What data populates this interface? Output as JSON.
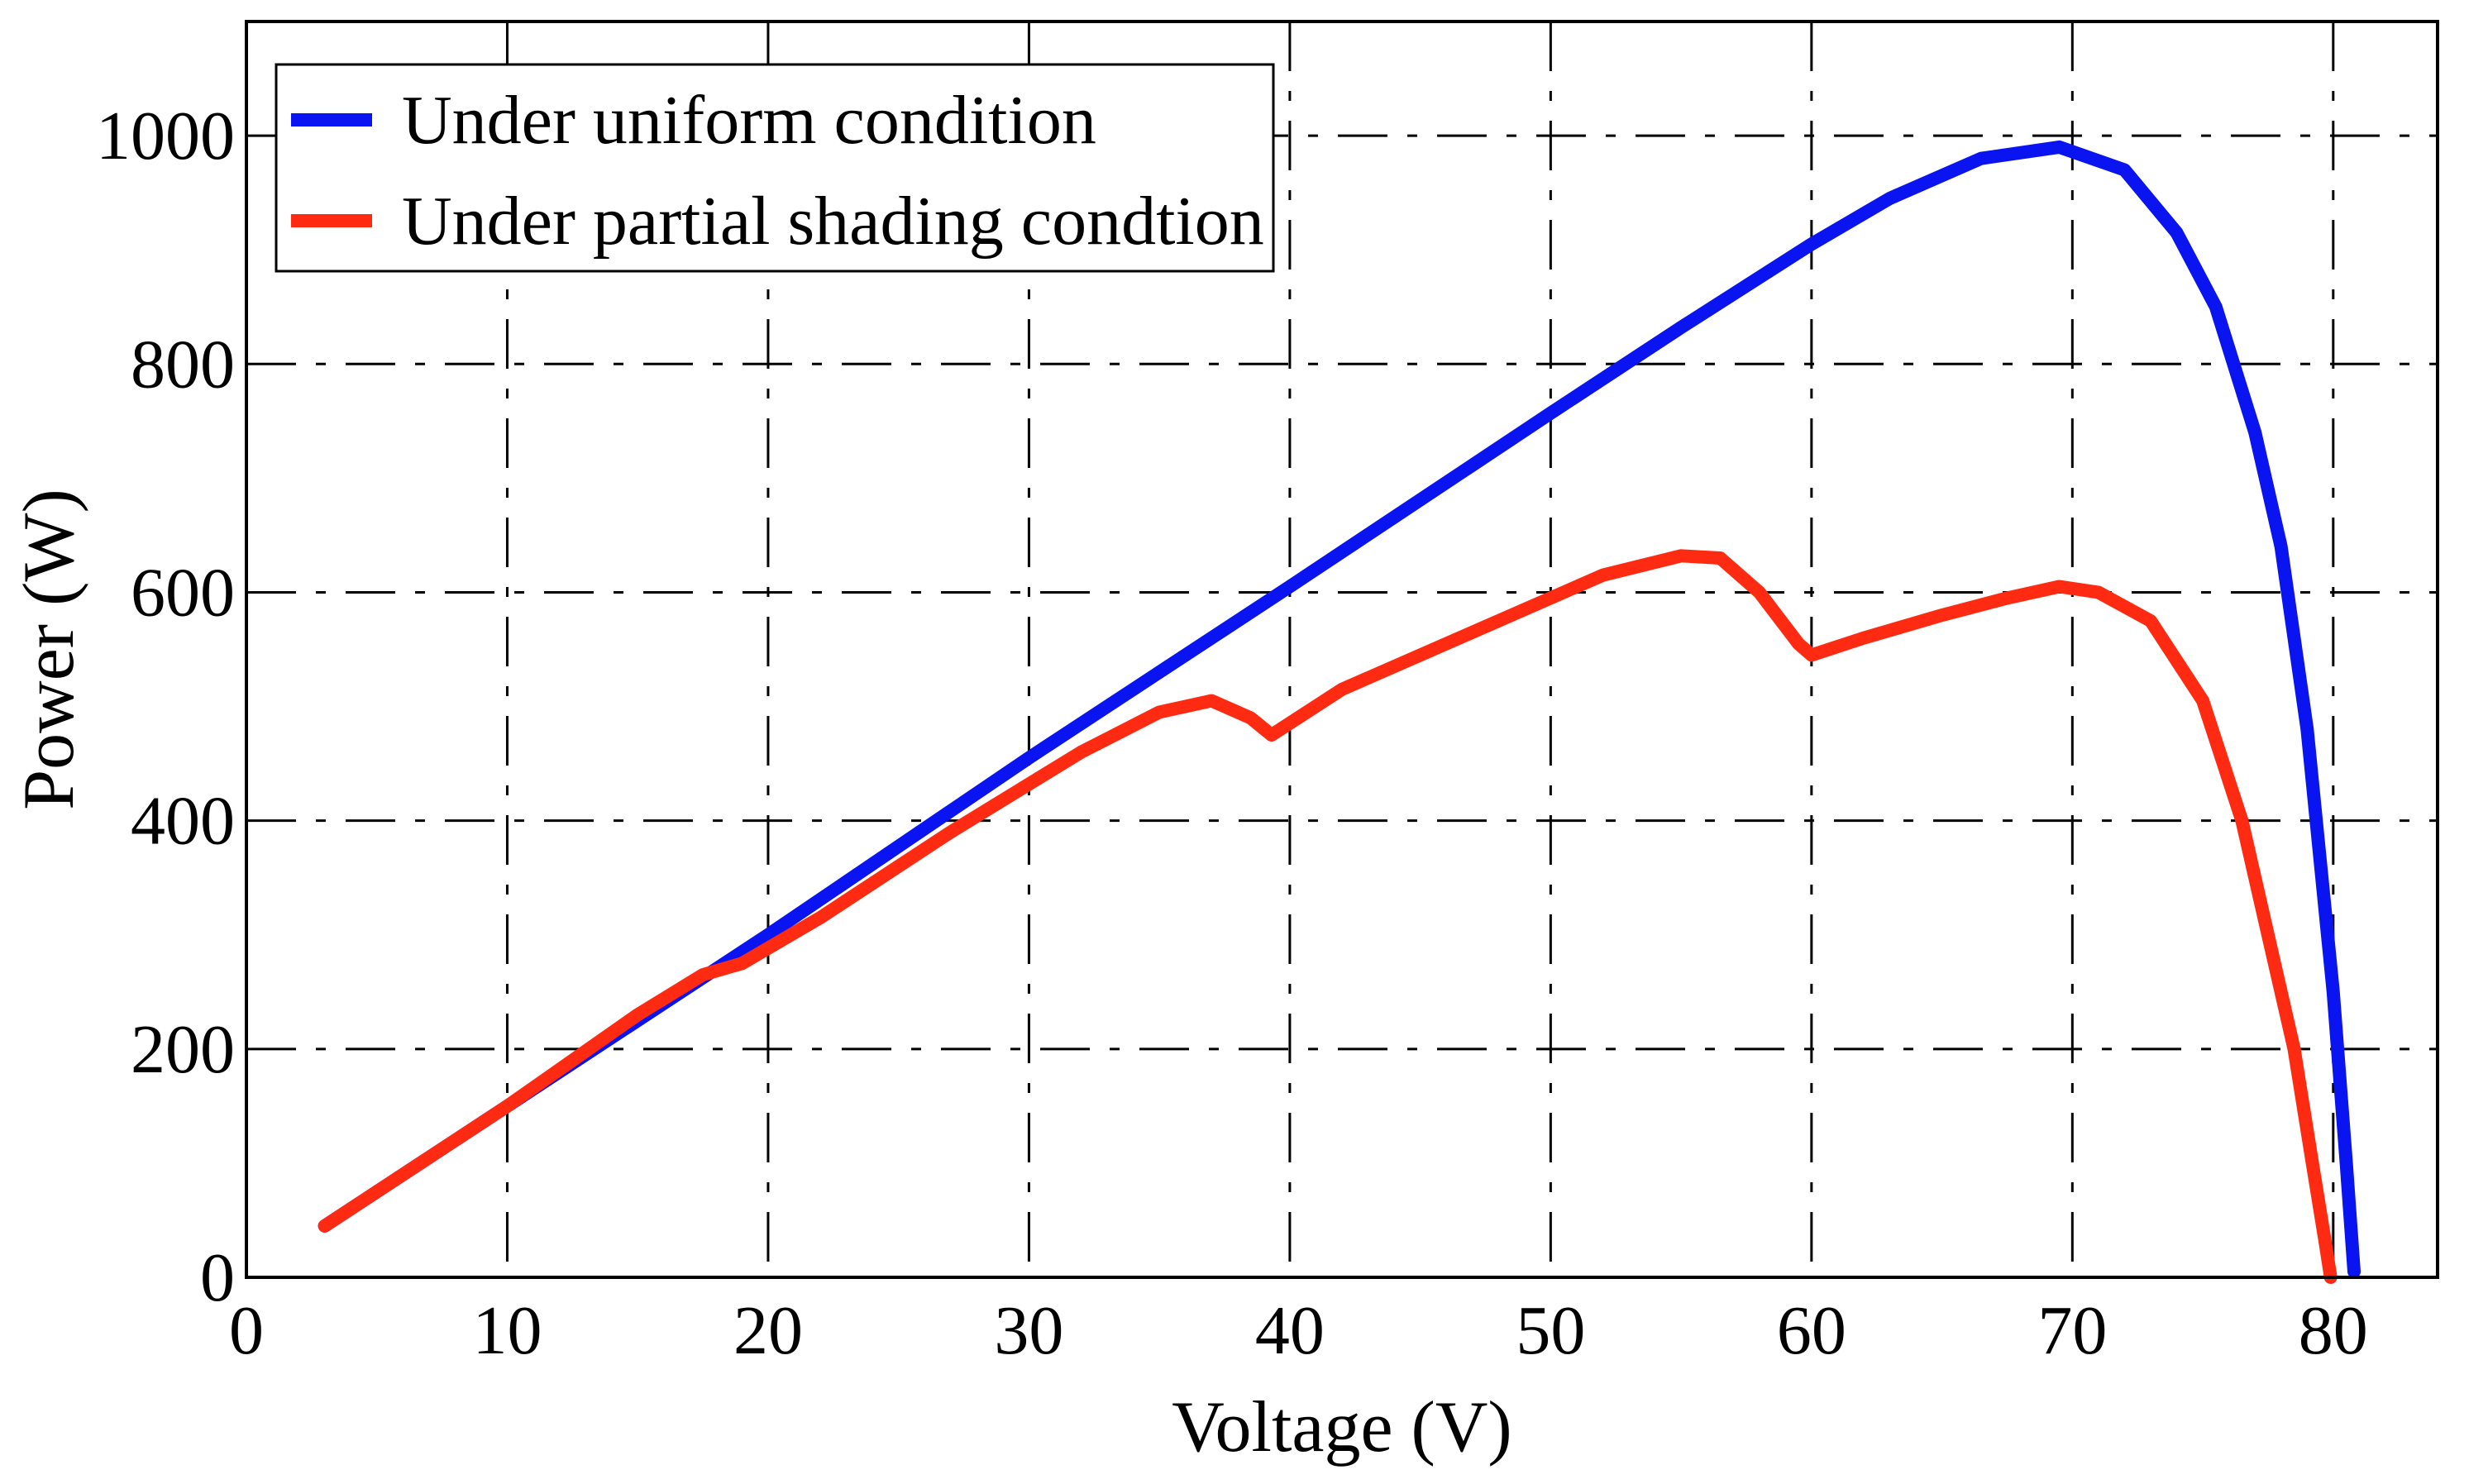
{
  "chart_data": {
    "type": "line",
    "title": "",
    "xlabel": "Voltage (V)",
    "ylabel": "Power (W)",
    "xlim": [
      0,
      84
    ],
    "ylim": [
      0,
      1100
    ],
    "xticks": [
      0,
      10,
      20,
      30,
      40,
      50,
      60,
      70,
      80
    ],
    "yticks": [
      0,
      200,
      400,
      600,
      800,
      1000
    ],
    "xtick_labels": [
      "0",
      "10",
      "20",
      "30",
      "40",
      "50",
      "60",
      "70",
      "80"
    ],
    "ytick_labels": [
      "0",
      "200",
      "400",
      "600",
      "800",
      "1000"
    ],
    "grid": true,
    "legend_position": "top-left",
    "series": [
      {
        "name": "Under uniform condition",
        "color": "#0a14f0",
        "x": [
          3,
          10,
          20,
          30,
          40,
          50,
          55,
          60,
          63,
          66.5,
          69.5,
          72,
          74,
          75.5,
          77,
          78,
          79,
          80,
          80.5,
          80.8
        ],
        "y": [
          45,
          150,
          300,
          455,
          605,
          757,
          832,
          905,
          945,
          980,
          990,
          970,
          915,
          850,
          740,
          640,
          480,
          250,
          100,
          5
        ]
      },
      {
        "name": "Under partial shading condtion",
        "color": "#ff2a12",
        "x": [
          3,
          10,
          15,
          17.5,
          19,
          22,
          27,
          32,
          35,
          37,
          38.5,
          39.3,
          42,
          47,
          52,
          55,
          56.5,
          58,
          59.5,
          60,
          62,
          65,
          67.5,
          69.5,
          71,
          73,
          75,
          76.5,
          77.5,
          78.5,
          79.2,
          79.7,
          79.9
        ],
        "y": [
          45,
          150,
          230,
          265,
          275,
          315,
          390,
          460,
          495,
          505,
          490,
          475,
          515,
          565,
          615,
          632,
          630,
          600,
          555,
          545,
          560,
          580,
          595,
          605,
          600,
          575,
          505,
          400,
          300,
          200,
          100,
          30,
          0
        ]
      }
    ]
  }
}
